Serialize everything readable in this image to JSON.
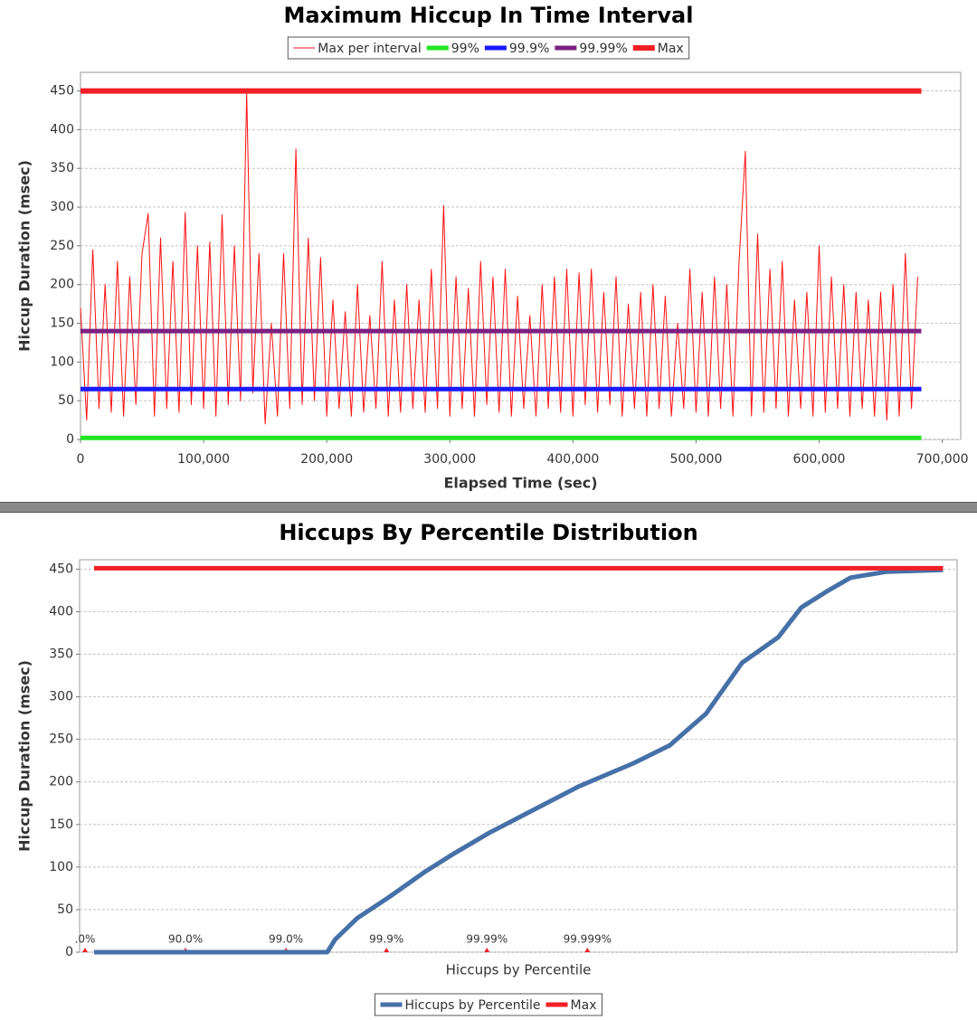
{
  "chart_data": [
    {
      "type": "line",
      "title": "Maximum Hiccup In Time Interval",
      "x_label": "Elapsed Time (sec)",
      "y_label": "Hiccup Duration (msec)",
      "xlim": [
        0,
        715000
      ],
      "xticks": [
        0,
        {
          "value": 100000,
          "label": "100,000"
        },
        {
          "value": 200000,
          "label": "200,000"
        },
        {
          "value": 300000,
          "label": "300,000"
        },
        {
          "value": 400000,
          "label": "400,000"
        },
        {
          "value": 500000,
          "label": "500,000"
        },
        {
          "value": 600000,
          "label": "600,000"
        },
        {
          "value": 700000,
          "label": "700,000"
        }
      ],
      "ylim": [
        0,
        474
      ],
      "yticks": [
        0,
        50,
        100,
        150,
        200,
        250,
        300,
        350,
        400,
        450
      ],
      "grid": true,
      "legend": "top",
      "series": [
        {
          "name": "Max per interval",
          "color": "#ff1010",
          "x": [
            0,
            5000,
            10000,
            15000,
            20000,
            25000,
            30000,
            35000,
            40000,
            45000,
            50000,
            55000,
            60000,
            65000,
            70000,
            75000,
            80000,
            85000,
            90000,
            95000,
            100000,
            105000,
            110000,
            115000,
            120000,
            125000,
            130000,
            135000,
            140000,
            145000,
            150000,
            155000,
            160000,
            165000,
            170000,
            175000,
            180000,
            185000,
            190000,
            195000,
            200000,
            205000,
            210000,
            215000,
            220000,
            225000,
            230000,
            235000,
            240000,
            245000,
            250000,
            255000,
            260000,
            265000,
            270000,
            275000,
            280000,
            285000,
            290000,
            295000,
            300000,
            305000,
            310000,
            315000,
            320000,
            325000,
            330000,
            335000,
            340000,
            345000,
            350000,
            355000,
            360000,
            365000,
            370000,
            375000,
            380000,
            385000,
            390000,
            395000,
            400000,
            405000,
            410000,
            415000,
            420000,
            425000,
            430000,
            435000,
            440000,
            445000,
            450000,
            455000,
            460000,
            465000,
            470000,
            475000,
            480000,
            485000,
            490000,
            495000,
            500000,
            505000,
            510000,
            515000,
            520000,
            525000,
            530000,
            535000,
            540000,
            545000,
            550000,
            555000,
            560000,
            565000,
            570000,
            575000,
            580000,
            585000,
            590000,
            595000,
            600000,
            605000,
            610000,
            615000,
            620000,
            625000,
            630000,
            635000,
            640000,
            645000,
            650000,
            655000,
            660000,
            665000,
            670000,
            675000,
            680000
          ],
          "values": [
            170,
            25,
            245,
            40,
            200,
            35,
            230,
            30,
            210,
            45,
            240,
            292,
            30,
            260,
            40,
            230,
            35,
            293,
            45,
            250,
            40,
            255,
            30,
            290,
            45,
            250,
            50,
            447,
            60,
            240,
            20,
            150,
            30,
            240,
            40,
            375,
            45,
            260,
            50,
            235,
            30,
            180,
            40,
            165,
            30,
            200,
            35,
            160,
            40,
            230,
            30,
            180,
            35,
            200,
            40,
            180,
            35,
            220,
            40,
            302,
            30,
            210,
            40,
            195,
            30,
            230,
            45,
            210,
            35,
            220,
            30,
            185,
            40,
            160,
            30,
            200,
            40,
            210,
            35,
            220,
            30,
            215,
            45,
            220,
            35,
            190,
            45,
            210,
            30,
            175,
            40,
            190,
            30,
            200,
            40,
            185,
            30,
            150,
            40,
            220,
            35,
            190,
            30,
            210,
            40,
            200,
            30,
            230,
            372,
            30,
            265,
            35,
            220,
            40,
            230,
            30,
            180,
            40,
            190,
            30,
            250,
            35,
            210,
            40,
            200,
            30,
            190,
            40,
            180,
            30,
            190,
            25,
            200,
            30,
            240,
            40,
            210
          ]
        },
        {
          "name": "99%",
          "color": "#22e622",
          "x": [
            0,
            683000
          ],
          "values": [
            2,
            2
          ]
        },
        {
          "name": "99.9%",
          "color": "#1a1aff",
          "x": [
            0,
            683000
          ],
          "values": [
            65,
            65
          ]
        },
        {
          "name": "99.99%",
          "color": "#7b2182",
          "x": [
            0,
            683000
          ],
          "values": [
            140,
            140
          ]
        },
        {
          "name": "Max",
          "color": "#f21f26",
          "x": [
            0,
            683000
          ],
          "values": [
            450,
            450
          ]
        }
      ]
    },
    {
      "type": "line",
      "title": "Hiccups By Percentile Distribution",
      "x_label": "Hiccups by Percentile",
      "y_label": "Hiccup Duration (msec)",
      "xlim": [
        -0.054,
        8.68
      ],
      "xticks": [
        {
          "value": 0,
          "label": ".0%"
        },
        {
          "value": 1,
          "label": "90.0%"
        },
        {
          "value": 2,
          "label": "99.0%"
        },
        {
          "value": 3,
          "label": "99.9%"
        },
        {
          "value": 4,
          "label": "99.99%"
        },
        {
          "value": 5,
          "label": "99.999%"
        }
      ],
      "ylim": [
        0,
        461
      ],
      "yticks": [
        0,
        50,
        100,
        150,
        200,
        250,
        300,
        350,
        400,
        450
      ],
      "grid": true,
      "legend": "bottom",
      "series": [
        {
          "name": "Hiccups by Percentile",
          "color": "#4670a8",
          "x": [
            0.09,
            1,
            2,
            2.41,
            2.49,
            2.71,
            3.03,
            3.39,
            3.66,
            4.02,
            4.38,
            4.92,
            5.46,
            5.82,
            6.18,
            6.36,
            6.54,
            6.9,
            7.13,
            7.4,
            7.62,
            7.98,
            8.54
          ],
          "values": [
            0,
            0,
            0,
            0,
            15,
            40,
            65,
            95,
            115,
            140,
            162,
            195,
            222,
            243,
            280,
            310,
            340,
            370,
            405,
            425,
            440,
            447,
            449
          ]
        },
        {
          "name": "Max",
          "color": "#f21f26",
          "x": [
            0.09,
            8.54
          ],
          "values": [
            451,
            451
          ]
        }
      ]
    }
  ]
}
